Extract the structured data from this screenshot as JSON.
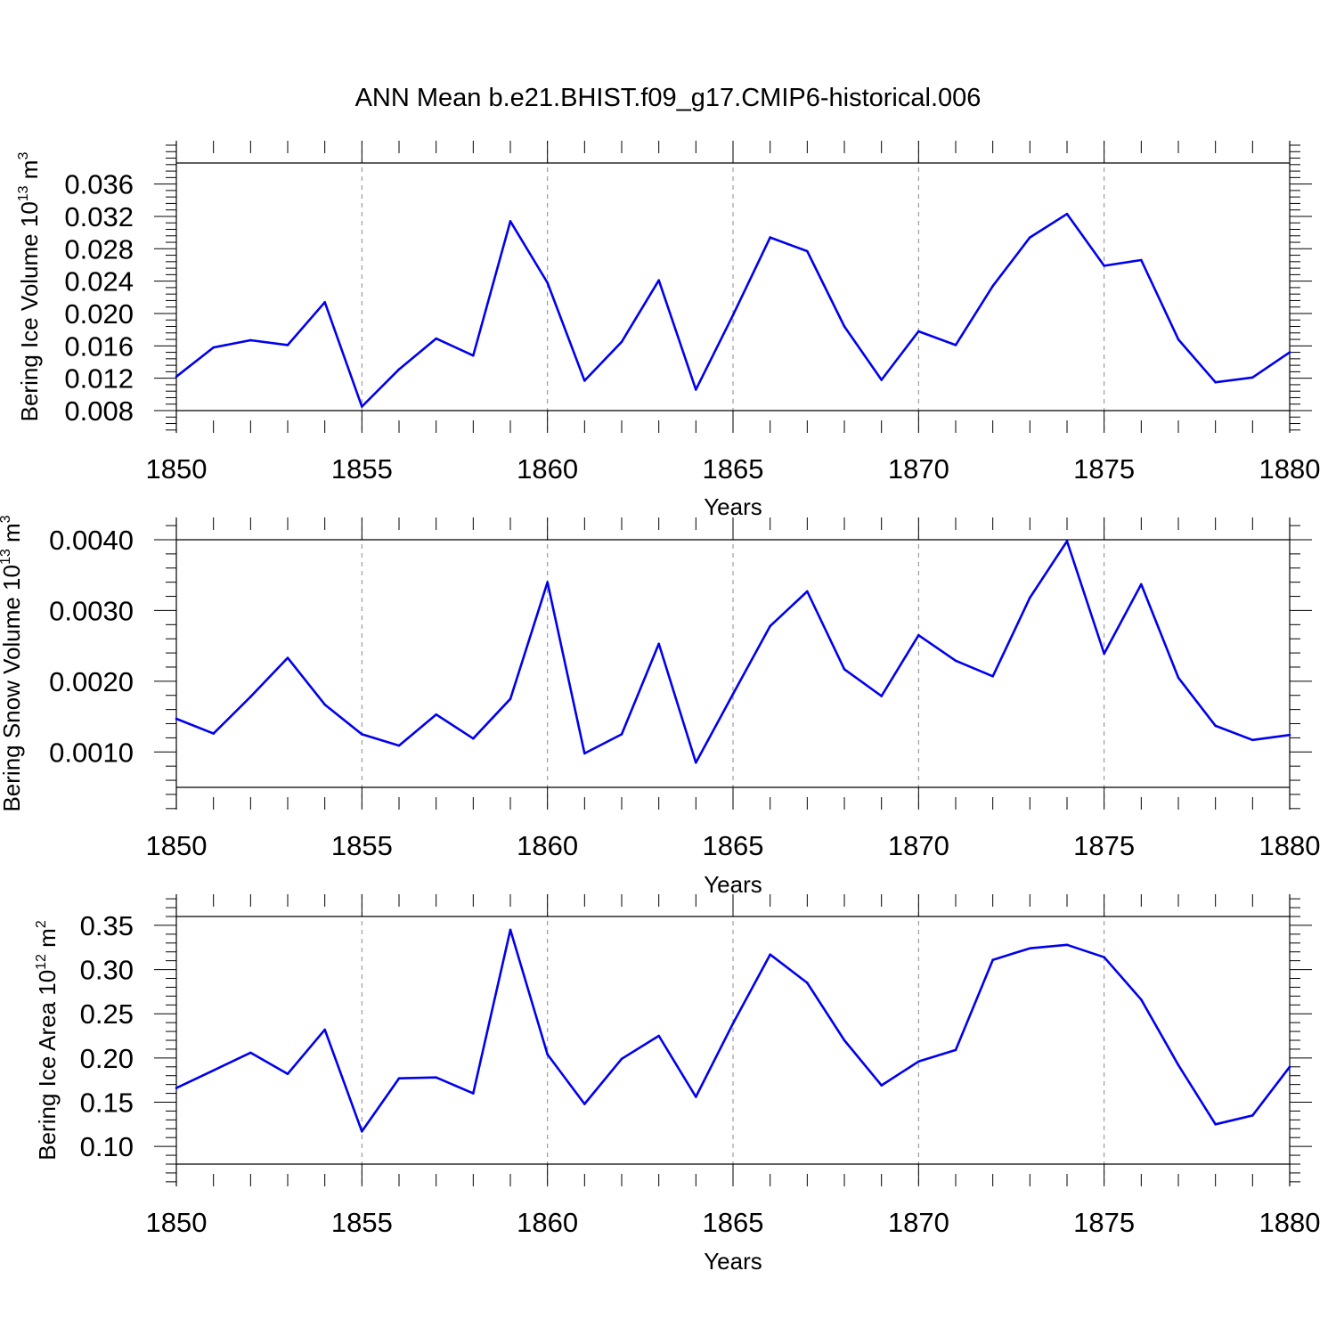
{
  "title": "ANN Mean b.e21.BHIST.f09_g17.CMIP6-historical.006",
  "colors": {
    "line": "#0000ee",
    "axis": "#000000",
    "grid": "#888888"
  },
  "chart_data": [
    {
      "type": "line",
      "name": "ice-volume",
      "ylabel_main": "Bering Ice Volume 10",
      "ylabel_sup1": "13",
      "ylabel_unit": " m",
      "ylabel_sup2": "3",
      "xlabel": "Years",
      "xlim": [
        1850,
        1880
      ],
      "ylim": [
        0.008,
        0.0386
      ],
      "x_ticks": [
        "1850",
        "1855",
        "1860",
        "1865",
        "1870",
        "1875",
        "1880"
      ],
      "y_ticks": [
        "0.008",
        "0.012",
        "0.016",
        "0.020",
        "0.024",
        "0.028",
        "0.032",
        "0.036"
      ],
      "grid": "vertical dashed at major x ticks",
      "x": [
        1850,
        1851,
        1852,
        1853,
        1854,
        1855,
        1856,
        1857,
        1858,
        1859,
        1860,
        1861,
        1862,
        1863,
        1864,
        1865,
        1866,
        1867,
        1868,
        1869,
        1870,
        1871,
        1872,
        1873,
        1874,
        1875,
        1876,
        1877,
        1878,
        1879,
        1880
      ],
      "values": [
        0.0122,
        0.0158,
        0.0167,
        0.0161,
        0.0214,
        0.0085,
        0.0131,
        0.0169,
        0.0148,
        0.0314,
        0.0238,
        0.0117,
        0.0165,
        0.0241,
        0.0106,
        0.0198,
        0.0294,
        0.0277,
        0.0184,
        0.0118,
        0.0178,
        0.0161,
        0.0234,
        0.0294,
        0.0323,
        0.0259,
        0.0266,
        0.0168,
        0.0115,
        0.0121,
        0.0152
      ]
    },
    {
      "type": "line",
      "name": "snow-volume",
      "ylabel_main": "Bering Snow Volume 10",
      "ylabel_sup1": "13",
      "ylabel_unit": " m",
      "ylabel_sup2": "3",
      "xlabel": "Years",
      "xlim": [
        1850,
        1880
      ],
      "ylim": [
        0.0005,
        0.004
      ],
      "x_ticks": [
        "1850",
        "1855",
        "1860",
        "1865",
        "1870",
        "1875",
        "1880"
      ],
      "y_ticks": [
        "0.0010",
        "0.0020",
        "0.0030",
        "0.0040"
      ],
      "grid": "vertical dashed at major x ticks",
      "x": [
        1850,
        1851,
        1852,
        1853,
        1854,
        1855,
        1856,
        1857,
        1858,
        1859,
        1860,
        1861,
        1862,
        1863,
        1864,
        1865,
        1866,
        1867,
        1868,
        1869,
        1870,
        1871,
        1872,
        1873,
        1874,
        1875,
        1876,
        1877,
        1878,
        1879,
        1880
      ],
      "values": [
        0.00147,
        0.00126,
        0.00178,
        0.00233,
        0.00167,
        0.00125,
        0.00109,
        0.00153,
        0.00119,
        0.00175,
        0.0034,
        0.00098,
        0.00125,
        0.00253,
        0.00085,
        0.00182,
        0.00278,
        0.00327,
        0.00217,
        0.00179,
        0.00265,
        0.00229,
        0.00207,
        0.00318,
        0.00398,
        0.00239,
        0.00337,
        0.00205,
        0.00137,
        0.00117,
        0.00124
      ]
    },
    {
      "type": "line",
      "name": "ice-area",
      "ylabel_main": "Bering Ice Area 10",
      "ylabel_sup1": "12",
      "ylabel_unit": " m",
      "ylabel_sup2": "2",
      "xlabel": "Years",
      "xlim": [
        1850,
        1880
      ],
      "ylim": [
        0.08,
        0.36
      ],
      "x_ticks": [
        "1850",
        "1855",
        "1860",
        "1865",
        "1870",
        "1875",
        "1880"
      ],
      "y_ticks": [
        "0.10",
        "0.15",
        "0.20",
        "0.25",
        "0.30",
        "0.35"
      ],
      "grid": "vertical dashed at major x ticks",
      "x": [
        1850,
        1851,
        1852,
        1853,
        1854,
        1855,
        1856,
        1857,
        1858,
        1859,
        1860,
        1861,
        1862,
        1863,
        1864,
        1865,
        1866,
        1867,
        1868,
        1869,
        1870,
        1871,
        1872,
        1873,
        1874,
        1875,
        1876,
        1877,
        1878,
        1879,
        1880
      ],
      "values": [
        0.166,
        0.186,
        0.206,
        0.182,
        0.232,
        0.117,
        0.177,
        0.178,
        0.16,
        0.345,
        0.204,
        0.148,
        0.199,
        0.225,
        0.156,
        0.239,
        0.317,
        0.285,
        0.22,
        0.169,
        0.196,
        0.209,
        0.311,
        0.324,
        0.328,
        0.314,
        0.266,
        0.192,
        0.125,
        0.135,
        0.19
      ]
    }
  ]
}
